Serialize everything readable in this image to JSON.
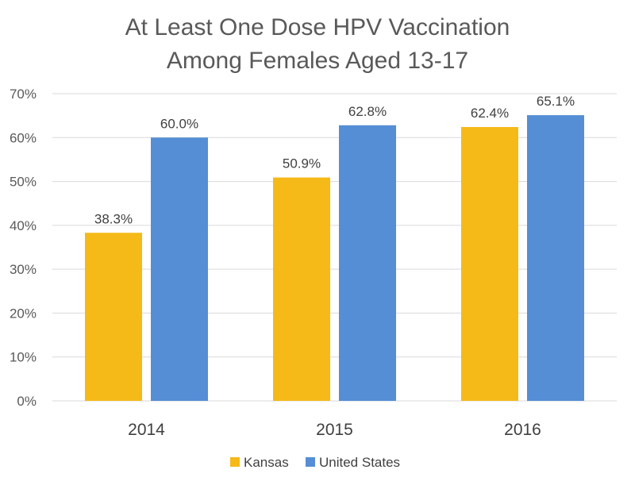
{
  "chart_data": {
    "type": "bar",
    "title_lines": [
      "At Least One Dose HPV Vaccination",
      "Among Females Aged 13-17"
    ],
    "categories": [
      "2014",
      "2015",
      "2016"
    ],
    "series": [
      {
        "name": "Kansas",
        "values": [
          38.3,
          50.9,
          62.4
        ],
        "labels": [
          "38.3%",
          "50.9%",
          "62.4%"
        ],
        "color": "#f5b918"
      },
      {
        "name": "United States",
        "values": [
          60.0,
          62.8,
          65.1
        ],
        "labels": [
          "60.0%",
          "62.8%",
          "65.1%"
        ],
        "color": "#558ed5"
      }
    ],
    "ylim": [
      0,
      70
    ],
    "yticks": [
      0,
      10,
      20,
      30,
      40,
      50,
      60,
      70
    ],
    "ytick_labels": [
      "0%",
      "10%",
      "20%",
      "30%",
      "40%",
      "50%",
      "60%",
      "70%"
    ],
    "grid": true,
    "legend_position": "bottom"
  }
}
